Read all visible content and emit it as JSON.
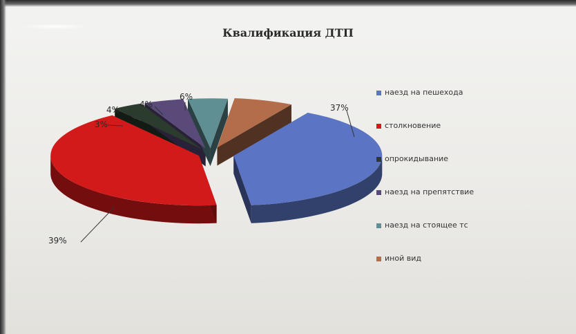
{
  "chart_data": {
    "type": "pie",
    "title": "Квалификация ДТП",
    "categories": [
      "наезд на пешехода",
      "столкновение",
      "опрокидывание",
      "наезд на препятствие",
      "наезд на стоящее тс",
      "иной вид"
    ],
    "values": [
      37,
      39,
      3,
      4,
      4,
      6
    ],
    "labels": [
      "37%",
      "39%",
      "3%",
      "4%",
      "4%",
      "6%"
    ],
    "colors": [
      "#5b74c4",
      "#d21a1a",
      "#2b3b2e",
      "#5a4a7a",
      "#5f8f92",
      "#b46d4a"
    ],
    "legend_position": "right",
    "exploded": true,
    "style": "3d"
  }
}
